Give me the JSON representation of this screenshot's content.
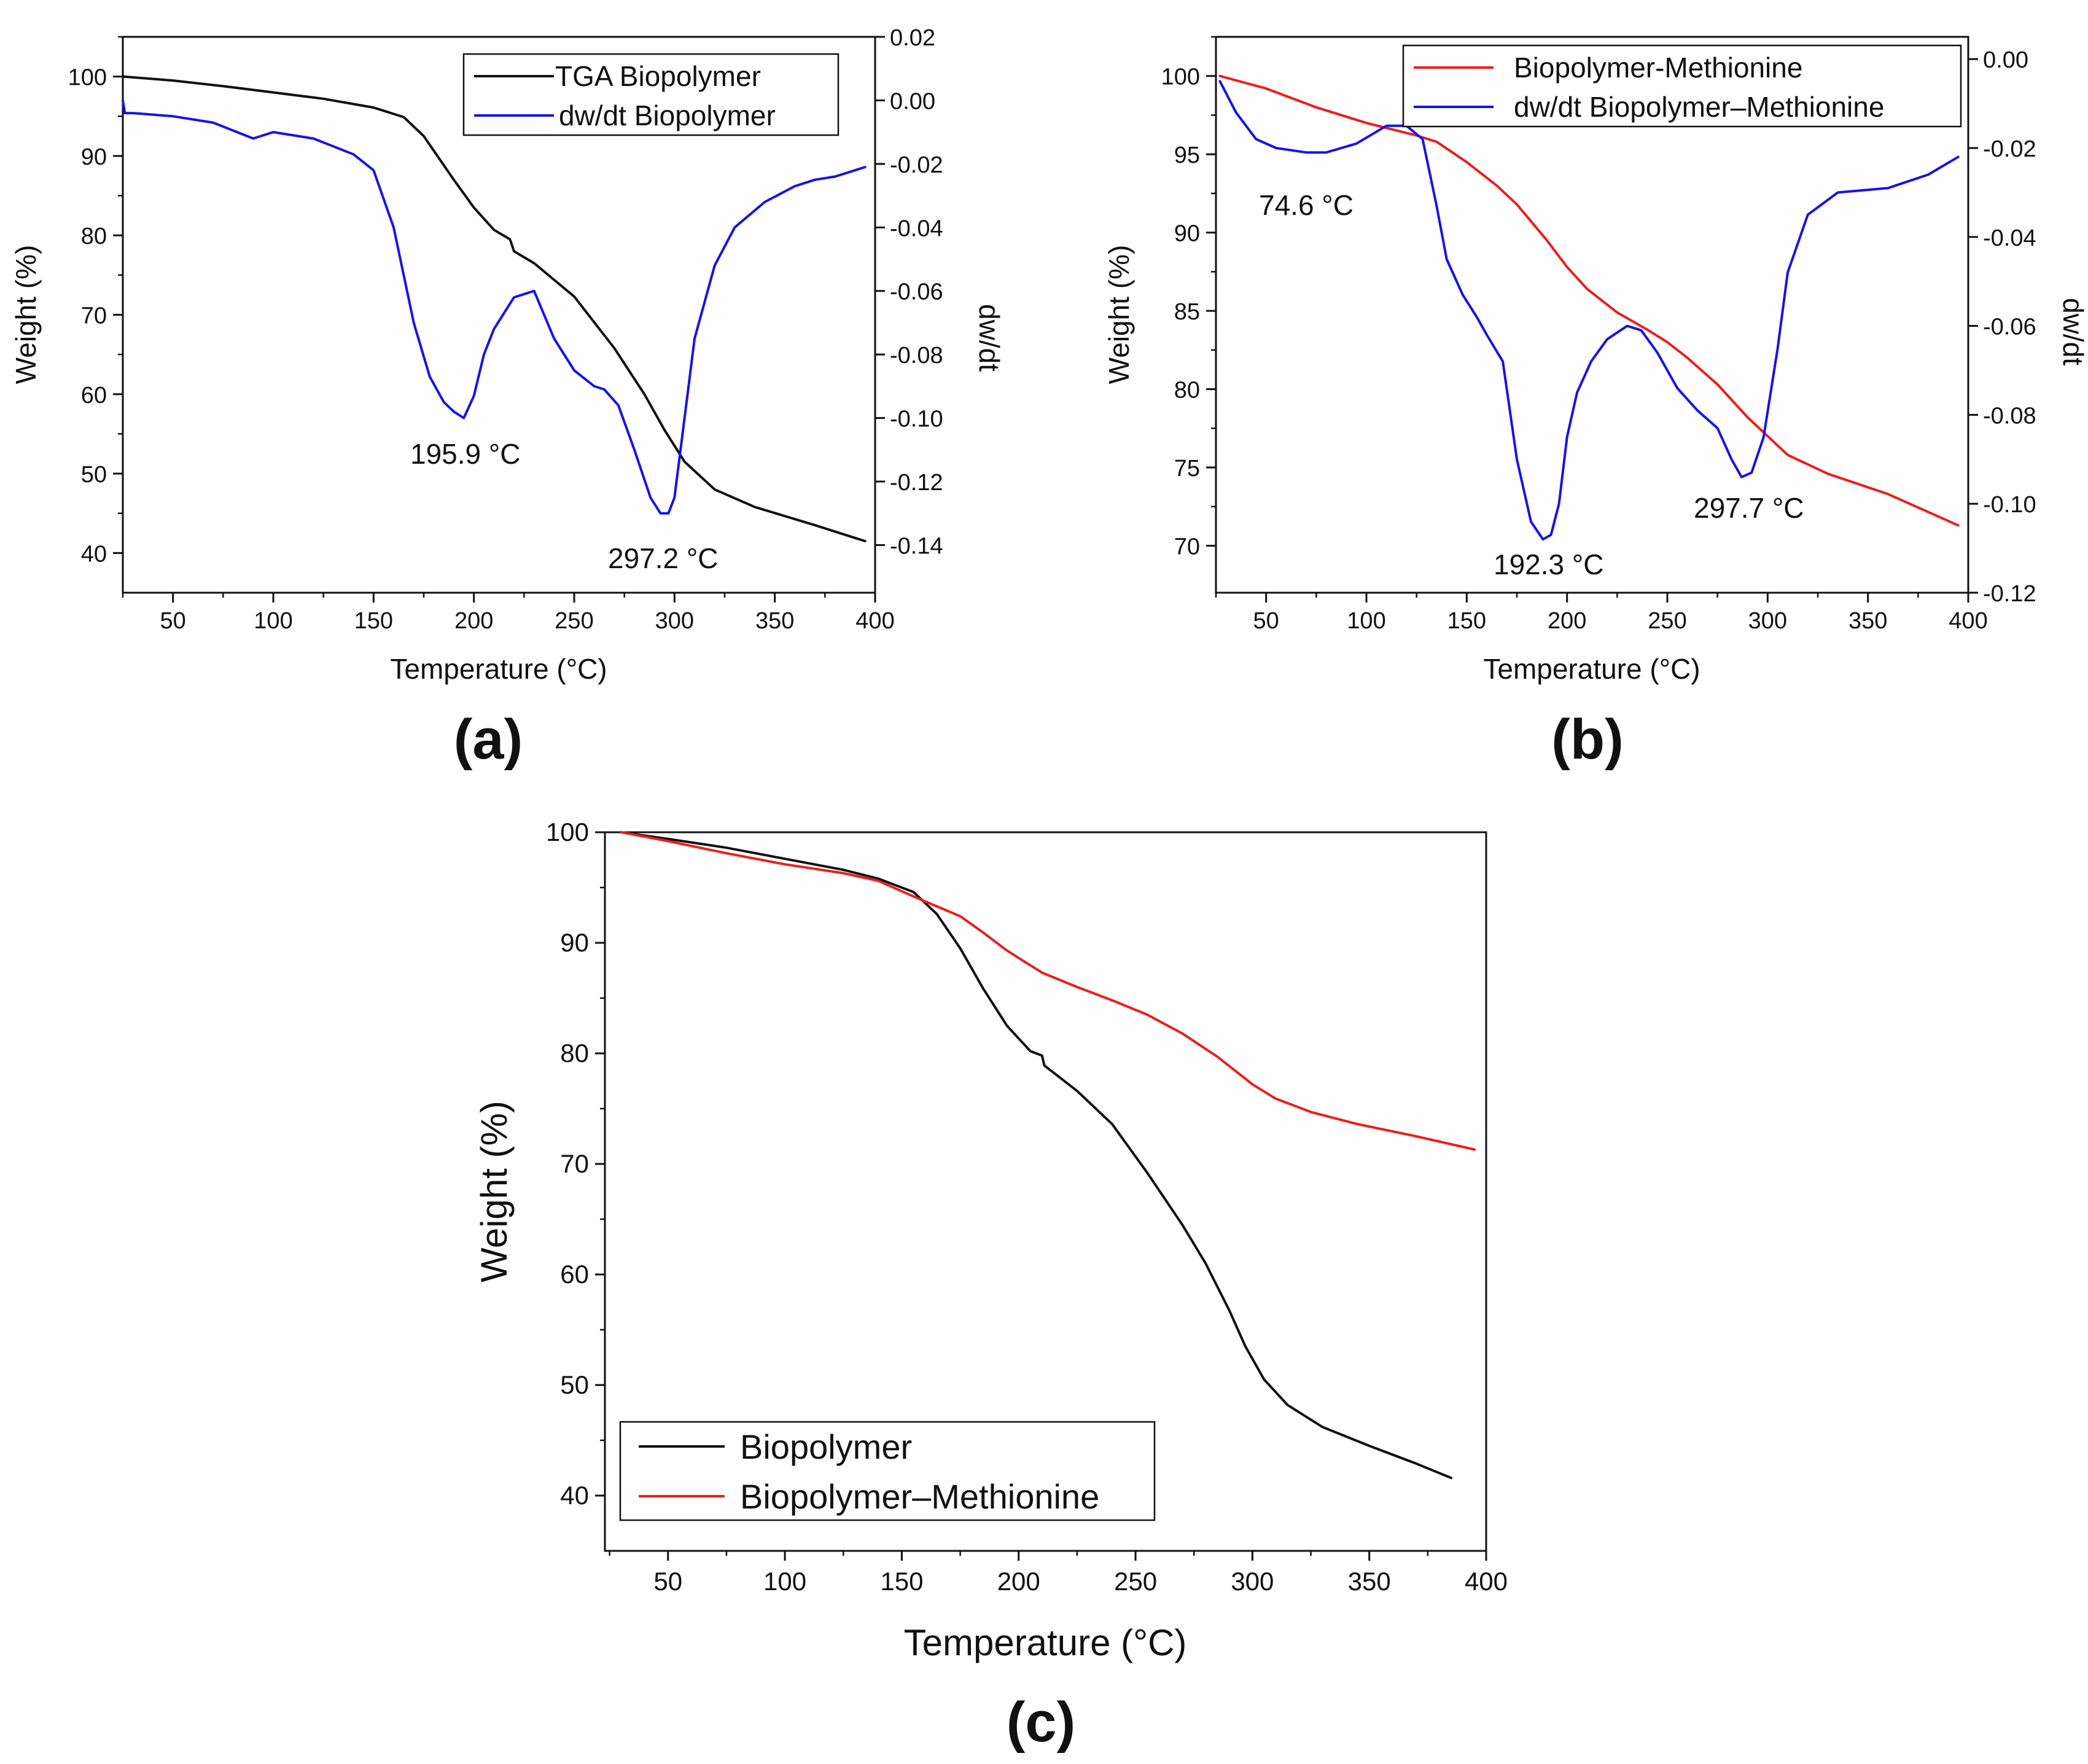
{
  "colors": {
    "black": "#111111",
    "red": "#ee1c1c",
    "blue": "#1414e6"
  },
  "panels": {
    "a": {
      "label": "(a)"
    },
    "b": {
      "label": "(b)"
    },
    "c": {
      "label": "(c)"
    }
  },
  "chart_data": [
    {
      "id": "a",
      "type": "line",
      "xlabel": "Temperature (°C)",
      "ylabel": "Weight (%)",
      "y2label": "dw/dt",
      "xlim": [
        25,
        400
      ],
      "ylim": [
        35,
        105
      ],
      "y2lim": [
        -0.155,
        0.02
      ],
      "xticks": [
        50,
        100,
        150,
        200,
        250,
        300,
        350,
        400
      ],
      "yticks": [
        40,
        50,
        60,
        70,
        80,
        90,
        100
      ],
      "y2ticks": [
        0.02,
        0.0,
        -0.02,
        -0.04,
        -0.06,
        -0.08,
        -0.1,
        -0.12,
        -0.14
      ],
      "y2tick_labels": [
        "0.02",
        "0.00",
        "-0.02",
        "-0.04",
        "-0.06",
        "-0.08",
        "-0.10",
        "-0.12",
        "-0.14"
      ],
      "legend": "top-right",
      "series": [
        {
          "name": "TGA Biopolymer",
          "axis": "left",
          "color": "black",
          "x": [
            25,
            50,
            75,
            100,
            125,
            150,
            165,
            175,
            190,
            200,
            210,
            218,
            220,
            230,
            250,
            270,
            285,
            295,
            305,
            320,
            340,
            370,
            395
          ],
          "y": [
            100,
            99.5,
            98.8,
            98,
            97.2,
            96.1,
            94.9,
            92.5,
            87,
            83.5,
            80.7,
            79.5,
            78,
            76.5,
            72.3,
            65.8,
            60,
            55.5,
            51.5,
            48,
            45.8,
            43.5,
            41.5
          ]
        },
        {
          "name": "dw/dt Biopolymer",
          "axis": "right",
          "color": "blue",
          "x": [
            25,
            26,
            30,
            50,
            70,
            90,
            100,
            120,
            140,
            150,
            160,
            170,
            178,
            185,
            190,
            195,
            200,
            205,
            210,
            220,
            230,
            240,
            250,
            260,
            265,
            272,
            280,
            288,
            293,
            297,
            300,
            305,
            310,
            320,
            330,
            345,
            360,
            370,
            380,
            395
          ],
          "y": [
            0,
            -0.004,
            -0.004,
            -0.005,
            -0.007,
            -0.012,
            -0.01,
            -0.012,
            -0.017,
            -0.022,
            -0.04,
            -0.07,
            -0.087,
            -0.095,
            -0.098,
            -0.1,
            -0.093,
            -0.08,
            -0.072,
            -0.062,
            -0.06,
            -0.075,
            -0.085,
            -0.09,
            -0.091,
            -0.096,
            -0.11,
            -0.125,
            -0.13,
            -0.13,
            -0.125,
            -0.1,
            -0.075,
            -0.052,
            -0.04,
            -0.032,
            -0.027,
            -0.025,
            -0.024,
            -0.021
          ]
        }
      ],
      "annotations": [
        "195.9 °C",
        "297.2 °C"
      ]
    },
    {
      "id": "b",
      "type": "line",
      "xlabel": "Temperature (°C)",
      "ylabel": "Weight (%)",
      "y2label": "dw/dt",
      "xlim": [
        25,
        400
      ],
      "ylim": [
        67,
        102.5
      ],
      "y2lim": [
        -0.12,
        0.005
      ],
      "xticks": [
        50,
        100,
        150,
        200,
        250,
        300,
        350,
        400
      ],
      "yticks": [
        70,
        75,
        80,
        85,
        90,
        95,
        100
      ],
      "y2ticks": [
        0.0,
        -0.02,
        -0.04,
        -0.06,
        -0.08,
        -0.1,
        -0.12
      ],
      "y2tick_labels": [
        "0.00",
        "-0.02",
        "-0.04",
        "-0.06",
        "-0.08",
        "-0.10",
        "-0.12"
      ],
      "legend": "top-right",
      "series": [
        {
          "name": "Biopolymer-Methionine",
          "axis": "left",
          "color": "red",
          "x": [
            27,
            50,
            75,
            100,
            125,
            135,
            150,
            165,
            175,
            190,
            200,
            210,
            225,
            240,
            250,
            260,
            275,
            290,
            300,
            310,
            330,
            360,
            395
          ],
          "y": [
            100,
            99.2,
            98,
            97,
            96.2,
            95.8,
            94.5,
            93,
            91.8,
            89.5,
            87.8,
            86.4,
            84.9,
            83.8,
            83,
            82,
            80.3,
            78.2,
            77,
            75.8,
            74.6,
            73.3,
            71.3
          ]
        },
        {
          "name": "dw/dt Biopolymer–Methionine",
          "axis": "right",
          "color": "blue",
          "x": [
            27,
            35,
            45,
            55,
            70,
            80,
            95,
            110,
            120,
            128,
            135,
            140,
            148,
            155,
            160,
            168,
            175,
            182,
            188,
            192,
            196,
            200,
            205,
            212,
            220,
            230,
            237,
            245,
            255,
            265,
            275,
            282,
            287,
            292,
            298,
            305,
            310,
            320,
            335,
            360,
            380,
            395
          ],
          "y": [
            -0.005,
            -0.012,
            -0.018,
            -0.02,
            -0.021,
            -0.021,
            -0.019,
            -0.015,
            -0.015,
            -0.018,
            -0.033,
            -0.045,
            -0.053,
            -0.058,
            -0.062,
            -0.068,
            -0.09,
            -0.104,
            -0.108,
            -0.107,
            -0.1,
            -0.085,
            -0.075,
            -0.068,
            -0.063,
            -0.06,
            -0.061,
            -0.066,
            -0.074,
            -0.079,
            -0.083,
            -0.09,
            -0.094,
            -0.093,
            -0.085,
            -0.065,
            -0.048,
            -0.035,
            -0.03,
            -0.029,
            -0.026,
            -0.022
          ]
        }
      ],
      "annotations": [
        "74.6 °C",
        "192.3 °C",
        "297.7 °C"
      ]
    },
    {
      "id": "c",
      "type": "line",
      "xlabel": "Temperature (°C)",
      "ylabel": "Weight (%)",
      "xlim": [
        23,
        400
      ],
      "ylim": [
        35,
        100
      ],
      "xticks": [
        50,
        100,
        150,
        200,
        250,
        300,
        350,
        400
      ],
      "yticks": [
        40,
        50,
        60,
        70,
        80,
        90,
        100
      ],
      "legend": "bottom-left",
      "series": [
        {
          "name": "Biopolymer",
          "color": "black",
          "x": [
            30,
            50,
            75,
            100,
            125,
            140,
            155,
            165,
            175,
            185,
            195,
            205,
            210,
            211,
            225,
            240,
            255,
            270,
            280,
            290,
            297,
            305,
            315,
            330,
            350,
            370,
            385
          ],
          "y": [
            100,
            99.4,
            98.6,
            97.6,
            96.6,
            95.8,
            94.6,
            92.6,
            89.5,
            85.8,
            82.5,
            80.2,
            79.8,
            78.9,
            76.6,
            73.6,
            69.2,
            64.5,
            61,
            56.8,
            53.5,
            50.5,
            48.2,
            46.2,
            44.5,
            42.9,
            41.6
          ]
        },
        {
          "name": "Biopolymer–Methionine",
          "color": "red",
          "x": [
            30,
            50,
            75,
            100,
            125,
            140,
            155,
            165,
            175,
            185,
            195,
            210,
            225,
            240,
            255,
            270,
            285,
            300,
            310,
            325,
            345,
            370,
            395
          ],
          "y": [
            100,
            99.2,
            98.1,
            97.1,
            96.3,
            95.6,
            94.2,
            93.3,
            92.4,
            90.9,
            89.3,
            87.3,
            86,
            84.8,
            83.5,
            81.8,
            79.7,
            77.2,
            75.9,
            74.7,
            73.6,
            72.5,
            71.3
          ]
        }
      ]
    }
  ]
}
